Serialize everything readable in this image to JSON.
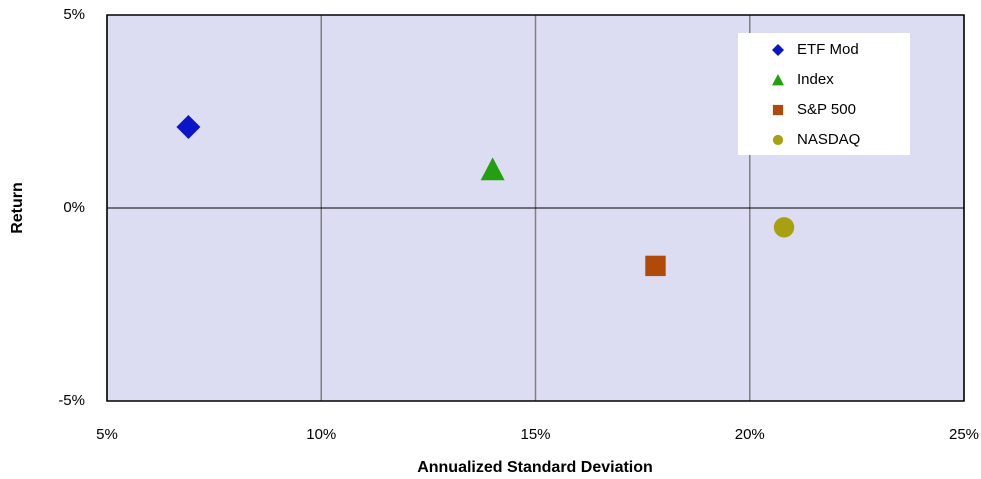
{
  "chart_data": {
    "type": "scatter",
    "x_label": "Annualized Standard Deviation",
    "y_label": "Return",
    "xlim": [
      5,
      25
    ],
    "ylim": [
      -5,
      5
    ],
    "xticks": [
      {
        "value": 5,
        "label": "5%"
      },
      {
        "value": 10,
        "label": "10%"
      },
      {
        "value": 15,
        "label": "15%"
      },
      {
        "value": 20,
        "label": "20%"
      },
      {
        "value": 25,
        "label": "25%"
      }
    ],
    "yticks": [
      {
        "value": -5,
        "label": "-5%"
      },
      {
        "value": 0,
        "label": "0%"
      },
      {
        "value": 5,
        "label": "5%"
      }
    ],
    "grid": true,
    "legend": "upper right",
    "series": [
      {
        "name": "ETF Mod",
        "color": "#0a14c8",
        "marker": "diamond",
        "x": [
          6.9
        ],
        "y": [
          2.1
        ]
      },
      {
        "name": "Index",
        "color": "#22a010",
        "marker": "triangle",
        "x": [
          14.0
        ],
        "y": [
          1.0
        ]
      },
      {
        "name": "S&P 500",
        "color": "#b04a08",
        "marker": "square",
        "x": [
          17.8
        ],
        "y": [
          -1.5
        ]
      },
      {
        "name": "NASDAQ",
        "color": "#a8a010",
        "marker": "circle",
        "x": [
          20.8
        ],
        "y": [
          -0.5
        ]
      }
    ]
  }
}
